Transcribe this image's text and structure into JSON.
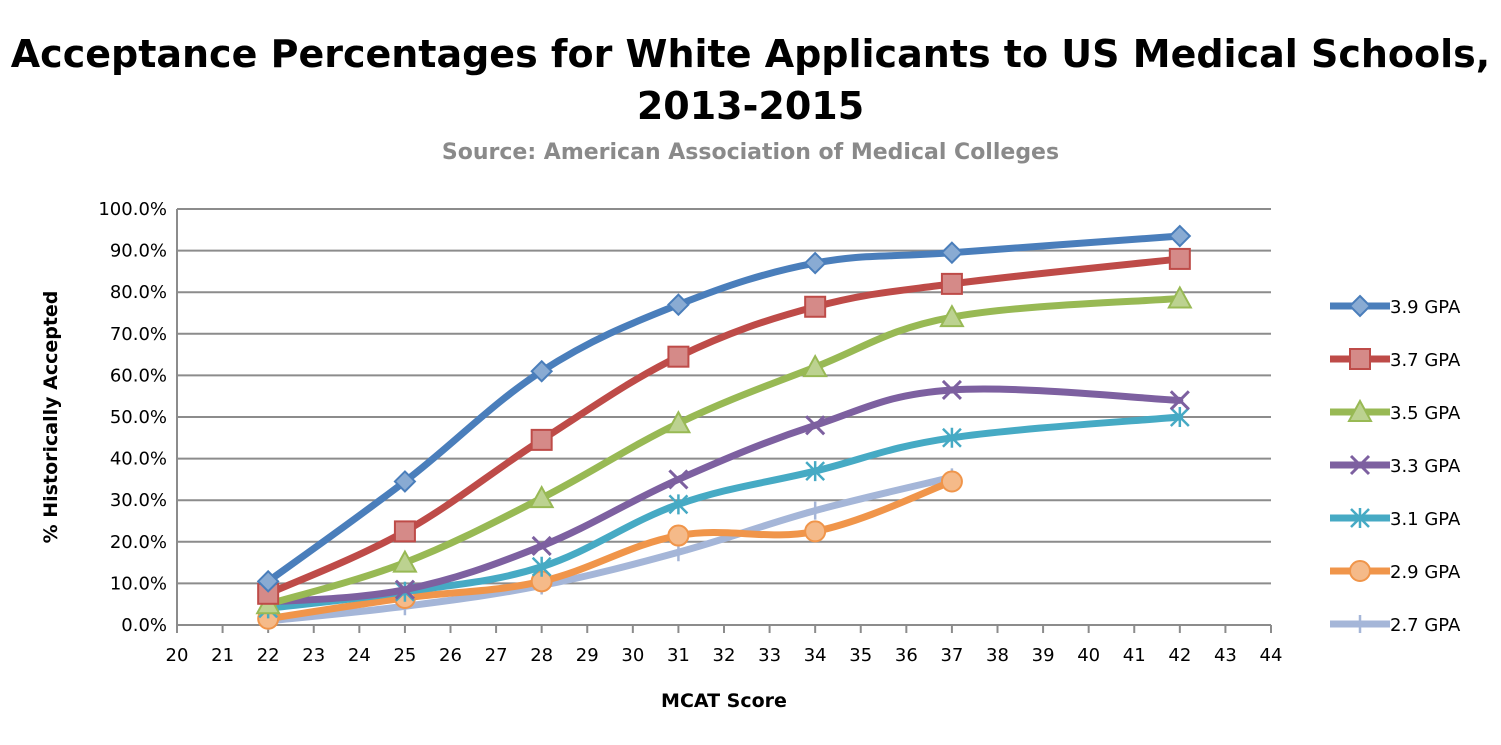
{
  "chart_data": {
    "type": "line",
    "title": "Acceptance Percentages for White Applicants to US Medical Schools, 2013-2015",
    "subtitle": "Source: American Association of Medical Colleges",
    "xlabel": "MCAT Score",
    "ylabel": "% Historically Accepted",
    "xlim": [
      20,
      44
    ],
    "ylim": [
      0,
      100
    ],
    "x_ticks": [
      "20",
      "21",
      "22",
      "23",
      "24",
      "25",
      "26",
      "27",
      "28",
      "29",
      "30",
      "31",
      "32",
      "33",
      "34",
      "35",
      "36",
      "37",
      "38",
      "39",
      "40",
      "41",
      "42",
      "43",
      "44"
    ],
    "y_ticks": [
      "0.0%",
      "10.0%",
      "20.0%",
      "30.0%",
      "40.0%",
      "50.0%",
      "60.0%",
      "70.0%",
      "80.0%",
      "90.0%",
      "100.0%"
    ],
    "grid": true,
    "legend_position": "right",
    "series": [
      {
        "name": "3.9 GPA",
        "color": "#4a7ebb",
        "marker": "diamond",
        "x": [
          22,
          25,
          28,
          31,
          34,
          37,
          42
        ],
        "y": [
          10.5,
          34.5,
          61.0,
          77.0,
          87.0,
          89.5,
          93.5
        ]
      },
      {
        "name": "3.7 GPA",
        "color": "#be4b48",
        "marker": "square",
        "x": [
          22,
          25,
          28,
          31,
          34,
          37,
          42
        ],
        "y": [
          7.5,
          22.5,
          44.5,
          64.5,
          76.5,
          82.0,
          88.0
        ]
      },
      {
        "name": "3.5 GPA",
        "color": "#98b954",
        "marker": "triangle",
        "x": [
          22,
          25,
          28,
          31,
          34,
          37,
          42
        ],
        "y": [
          5.0,
          15.0,
          30.5,
          48.5,
          62.0,
          74.0,
          78.5
        ]
      },
      {
        "name": "3.3 GPA",
        "color": "#7d60a0",
        "marker": "x",
        "x": [
          22,
          25,
          28,
          31,
          34,
          37,
          42
        ],
        "y": [
          5.5,
          8.5,
          19.0,
          35.0,
          48.0,
          56.5,
          54.0
        ]
      },
      {
        "name": "3.1 GPA",
        "color": "#46aac4",
        "marker": "asterisk",
        "x": [
          22,
          25,
          28,
          31,
          34,
          37,
          42
        ],
        "y": [
          4.0,
          8.0,
          14.0,
          29.0,
          37.0,
          45.0,
          50.0
        ]
      },
      {
        "name": "2.9 GPA",
        "color": "#f0954a",
        "marker": "circle",
        "x": [
          22,
          25,
          28,
          31,
          37
        ],
        "y": [
          1.5,
          6.5,
          10.5,
          21.5,
          34.5
        ],
        "x_extra": [
          34
        ],
        "y_extra": [
          22.5
        ]
      },
      {
        "name": "2.7 GPA",
        "color": "#a5b6d8",
        "marker": "plus",
        "x": [
          22,
          25,
          28,
          31,
          34,
          37
        ],
        "y": [
          1.0,
          4.5,
          9.5,
          17.5,
          27.5,
          35.5
        ]
      }
    ]
  }
}
